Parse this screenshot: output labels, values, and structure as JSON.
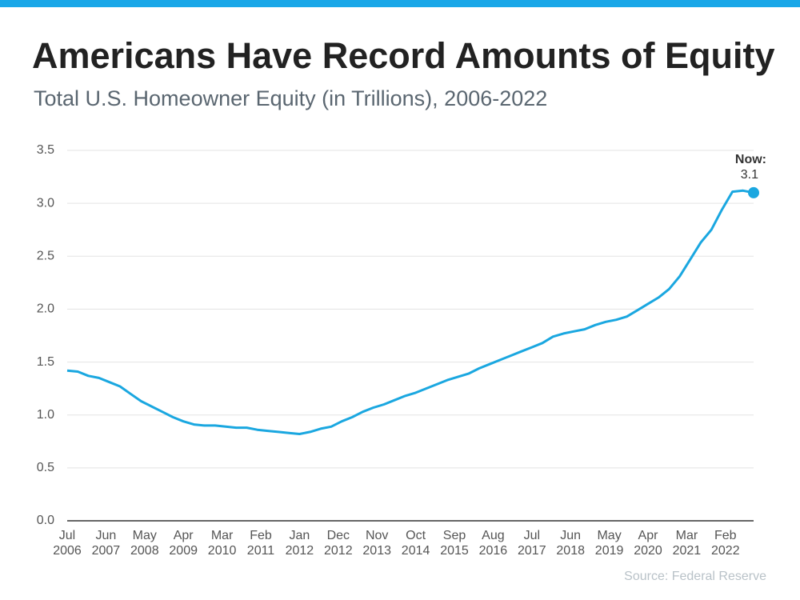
{
  "chart_data": {
    "type": "line",
    "title": "Americans Have Record Amounts of Equity",
    "subtitle": "Total U.S. Homeowner Equity (in Trillions), 2006-2022",
    "source": "Source: Federal Reserve",
    "x": [
      "Jul 2006",
      "Oct 2006",
      "Jan 2007",
      "Apr 2007",
      "Jul 2007",
      "Oct 2007",
      "Jan 2008",
      "Apr 2008",
      "Jul 2008",
      "Oct 2008",
      "Jan 2009",
      "Apr 2009",
      "Jul 2009",
      "Oct 2009",
      "Jan 2010",
      "Apr 2010",
      "Jul 2010",
      "Oct 2010",
      "Jan 2011",
      "Apr 2011",
      "Jul 2011",
      "Oct 2011",
      "Jan 2012",
      "Apr 2012",
      "Jul 2012",
      "Oct 2012",
      "Jan 2013",
      "Apr 2013",
      "Jul 2013",
      "Oct 2013",
      "Jan 2014",
      "Apr 2014",
      "Jul 2014",
      "Oct 2014",
      "Jan 2015",
      "Apr 2015",
      "Jul 2015",
      "Oct 2015",
      "Jan 2016",
      "Apr 2016",
      "Jul 2016",
      "Oct 2016",
      "Jan 2017",
      "Apr 2017",
      "Jul 2017",
      "Oct 2017",
      "Jan 2018",
      "Apr 2018",
      "Jul 2018",
      "Oct 2018",
      "Jan 2019",
      "Apr 2019",
      "Jul 2019",
      "Oct 2019",
      "Jan 2020",
      "Apr 2020",
      "Jul 2020",
      "Oct 2020",
      "Jan 2021",
      "Apr 2021",
      "Jul 2021",
      "Oct 2021",
      "Jan 2022",
      "Apr 2022",
      "Jul 2022",
      "Oct 2022"
    ],
    "series": [
      {
        "name": "Total U.S. Homeowner Equity",
        "color": "#1aa7e0",
        "values": [
          1.42,
          1.41,
          1.37,
          1.35,
          1.31,
          1.27,
          1.2,
          1.13,
          1.08,
          1.03,
          0.98,
          0.94,
          0.91,
          0.9,
          0.9,
          0.89,
          0.88,
          0.88,
          0.86,
          0.85,
          0.84,
          0.83,
          0.82,
          0.84,
          0.87,
          0.89,
          0.94,
          0.98,
          1.03,
          1.07,
          1.1,
          1.14,
          1.18,
          1.21,
          1.25,
          1.29,
          1.33,
          1.36,
          1.39,
          1.44,
          1.48,
          1.52,
          1.56,
          1.6,
          1.64,
          1.68,
          1.74,
          1.77,
          1.79,
          1.81,
          1.85,
          1.88,
          1.9,
          1.93,
          1.99,
          2.05,
          2.11,
          2.19,
          2.31,
          2.47,
          2.63,
          2.75,
          2.94,
          3.11,
          3.12,
          3.1
        ]
      }
    ],
    "annotation": {
      "text": "Now:",
      "value": 3.1
    },
    "xlim": [
      "Jul 2006",
      "Oct 2022"
    ],
    "xticks": [
      "Jul 2006",
      "Jun 2007",
      "May 2008",
      "Apr 2009",
      "Mar 2010",
      "Feb 2011",
      "Jan 2012",
      "Dec 2012",
      "Nov 2013",
      "Oct 2014",
      "Sep 2015",
      "Aug 2016",
      "Jul 2017",
      "Jun 2018",
      "May 2019",
      "Apr 2020",
      "Mar 2021",
      "Feb 2022"
    ],
    "ylim": [
      0,
      3.5
    ],
    "yticks": [
      {
        "value": 0,
        "label": "0.0"
      },
      {
        "value": 0.5,
        "label": "0.5"
      },
      {
        "value": 1,
        "label": "1.0"
      },
      {
        "value": 1.5,
        "label": "1.5"
      },
      {
        "value": 2,
        "label": "2.0"
      },
      {
        "value": 2.5,
        "label": "2.5"
      },
      {
        "value": 3,
        "label": "3.0"
      },
      {
        "value": 3.5,
        "label": "3.5"
      }
    ],
    "grid": true
  }
}
